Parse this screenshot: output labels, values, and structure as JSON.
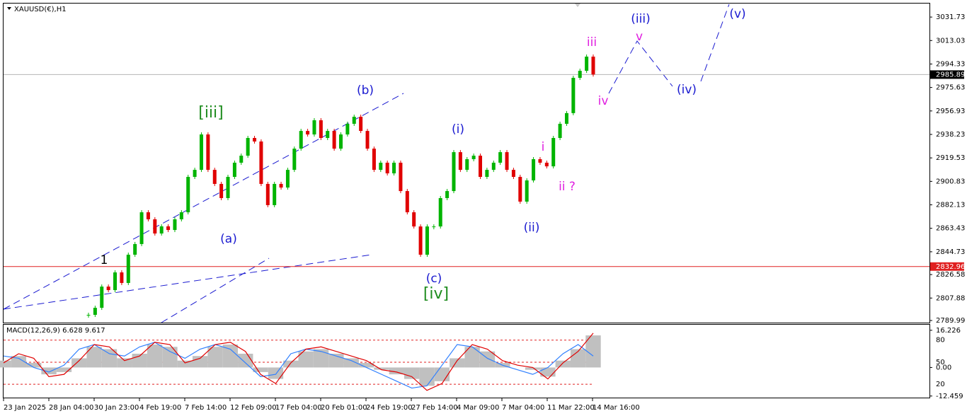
{
  "chart_data": [
    {
      "type": "candle",
      "title": "XAUUSD(€),H1",
      "values": [
        2794.5,
        2800.1,
        2817.0,
        2814.2,
        2828.3,
        2819.9,
        2842.4,
        2850.9,
        2876.2,
        2870.6,
        2859.3,
        2865.0,
        2862.1,
        2870.6,
        2876.2,
        2904.4,
        2910.0,
        2938.2,
        2910.0,
        2898.8,
        2887.5,
        2904.4,
        2915.7,
        2921.3,
        2935.4,
        2932.6,
        2898.8,
        2881.9,
        2898.8,
        2895.9,
        2910.0,
        2926.9,
        2941.0,
        2938.2,
        2949.5,
        2935.4,
        2941.0,
        2926.9,
        2938.2,
        2946.7,
        2952.3,
        2941.0,
        2926.9,
        2910.0,
        2915.7,
        2907.2,
        2915.7,
        2893.1,
        2876.2,
        2864.9,
        2842.4,
        2864.9,
        2864.9,
        2887.5,
        2893.1,
        2924.1,
        2910.0,
        2918.5,
        2921.3,
        2904.4,
        2910.0,
        2915.7,
        2924.1,
        2910.0,
        2904.4,
        2884.7,
        2901.6,
        2918.5,
        2915.7,
        2912.8,
        2935.4,
        2946.7,
        2955.2,
        2983.3,
        2988.9,
        3000.2,
        2986.0
      ],
      "colors": {
        "up": "#00b400",
        "down": "#e00000"
      },
      "ylim": [
        2788.3,
        3042.5
      ],
      "yticks": [
        3031.73,
        3013.03,
        2994.33,
        2975.63,
        2956.93,
        2938.23,
        2919.53,
        2900.83,
        2882.13,
        2863.43,
        2844.73,
        2826.58,
        2807.88,
        2789.99
      ],
      "price_lines": [
        {
          "value": 2985.89,
          "color": "#b4b4b4",
          "box": "#000000"
        },
        {
          "value": 2832.96,
          "color": "#e02020",
          "box": "#e02020"
        }
      ],
      "x_tick_labels": [
        "23 Jan 2025",
        "28 Jan 04:00",
        "30 Jan 23:00",
        "4 Feb 19:00",
        "7 Feb 14:00",
        "12 Feb 09:00",
        "17 Feb 04:00",
        "20 Feb 01:00",
        "24 Feb 19:00",
        "27 Feb 14:00",
        "4 Mar 09:00",
        "7 Mar 04:00",
        "11 Mar 22:00",
        "14 Mar 16:00"
      ],
      "annotations": [
        {
          "text": "[iii]",
          "color": "#1e8c1e"
        },
        {
          "text": "(b)",
          "color": "#1a1ad0"
        },
        {
          "text": "(i)",
          "color": "#1a1ad0"
        },
        {
          "text": "1",
          "color": "#000000"
        },
        {
          "text": "(a)",
          "color": "#1a1ad0"
        },
        {
          "text": "(c)",
          "color": "#1a1ad0"
        },
        {
          "text": "[iv]",
          "color": "#1e8c1e"
        },
        {
          "text": "(ii)",
          "color": "#1a1ad0"
        },
        {
          "text": "i",
          "color": "#e020e0"
        },
        {
          "text": "ii ?",
          "color": "#e020e0"
        },
        {
          "text": "iii",
          "color": "#e020e0"
        },
        {
          "text": "iv",
          "color": "#e020e0"
        },
        {
          "text": "(iii)",
          "color": "#1a1ad0"
        },
        {
          "text": "v",
          "color": "#e020e0"
        },
        {
          "text": "(iv)",
          "color": "#1a1ad0"
        },
        {
          "text": "(v)",
          "color": "#1a1ad0"
        }
      ]
    },
    {
      "type": "macd",
      "title": "MACD(12,26,9) 6.628 9.617",
      "ylim": [
        -13.15,
        18.65
      ],
      "yticks": [
        16.226,
        {
          "value": 0,
          "label": "0.00"
        },
        -12.459
      ],
      "y2lim": [
        1.9,
        100.9
      ],
      "y2ticks": [
        80,
        50,
        20
      ],
      "level_color": "#e02020",
      "series": [
        {
          "color": "#c0c0c0",
          "values": [
            3,
            5,
            2,
            -3,
            -2,
            4,
            9,
            8,
            4,
            6,
            10,
            9,
            3,
            5,
            9,
            10,
            6,
            -2,
            -5,
            3,
            7,
            8,
            6,
            4,
            2,
            -1,
            -3,
            -5,
            -8,
            -6,
            4,
            9,
            7,
            2,
            0,
            -1,
            -4,
            3,
            8,
            14
          ]
        },
        {
          "color": "#3080ff",
          "values": [
            5,
            4,
            0,
            -2,
            1,
            8,
            10,
            6,
            5,
            9,
            11,
            7,
            4,
            8,
            10,
            8,
            2,
            -4,
            -3,
            6,
            8,
            7,
            5,
            3,
            0,
            -3,
            -6,
            -9,
            -8,
            1,
            10,
            9,
            4,
            1,
            -1,
            -3,
            0,
            6,
            10,
            5
          ]
        },
        {
          "color": "#e00000",
          "values": [
            2,
            6,
            4,
            -4,
            -3,
            3,
            10,
            9,
            3,
            5,
            11,
            10,
            2,
            4,
            10,
            11,
            7,
            -3,
            -7,
            2,
            8,
            9,
            7,
            5,
            3,
            -1,
            -2,
            -4,
            -10,
            -7,
            3,
            10,
            8,
            3,
            1,
            0,
            -5,
            2,
            7,
            15
          ]
        }
      ]
    }
  ]
}
